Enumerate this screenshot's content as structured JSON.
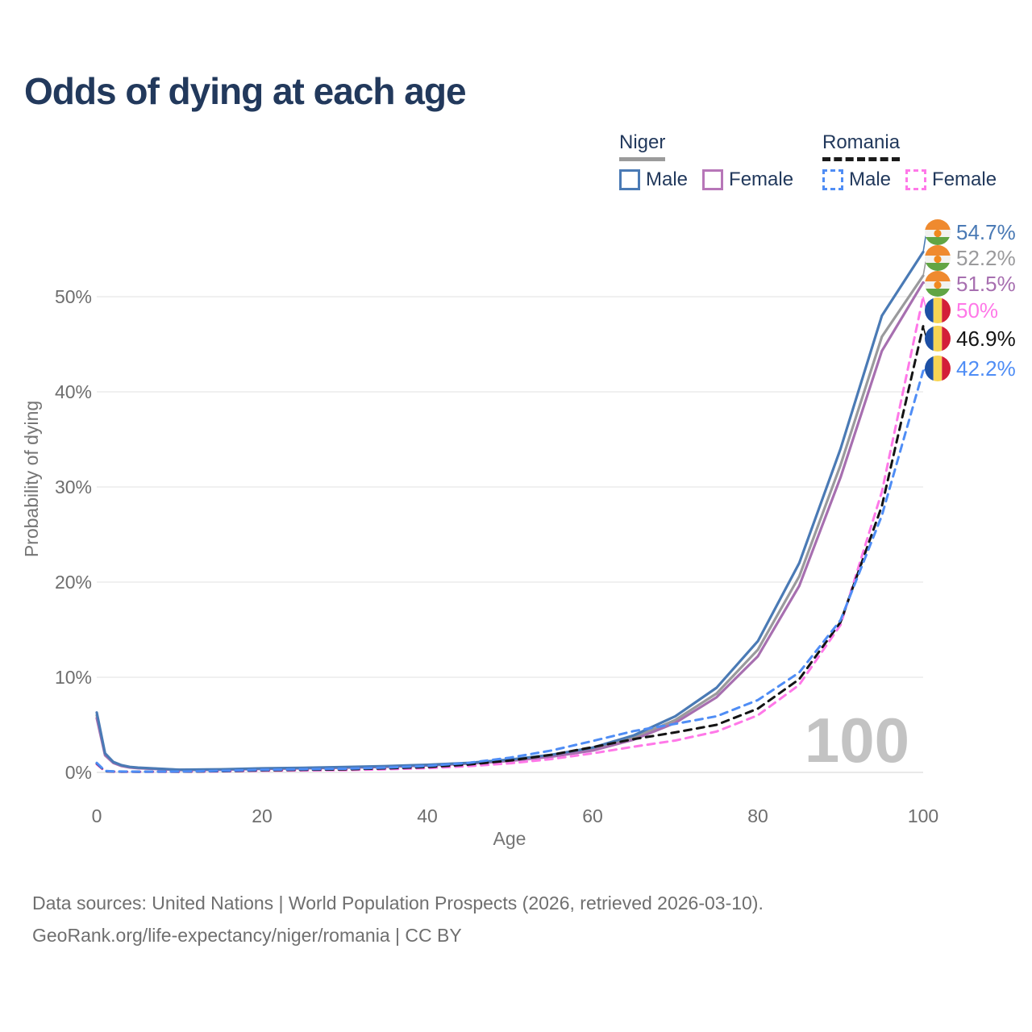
{
  "chart_data": {
    "type": "line",
    "title": "Odds of dying at each age",
    "xlabel": "Age",
    "ylabel": "Probability of dying",
    "xlim": [
      0,
      100
    ],
    "ylim": [
      0,
      57
    ],
    "grid": "horizontal",
    "watermark": "100",
    "xticks": [
      0,
      20,
      40,
      60,
      80,
      100
    ],
    "yticks": [
      {
        "value": 0,
        "label": "0%"
      },
      {
        "value": 10,
        "label": "10%"
      },
      {
        "value": 20,
        "label": "20%"
      },
      {
        "value": 30,
        "label": "30%"
      },
      {
        "value": 40,
        "label": "40%"
      },
      {
        "value": 50,
        "label": "50%"
      }
    ],
    "series": [
      {
        "name": "Niger Male",
        "country": "Niger",
        "sex": "Male",
        "color": "#4a7ab5",
        "line_style": "solid",
        "flag": "niger",
        "end_value": 54.7,
        "end_label": "54.7%",
        "points": [
          [
            0,
            6.3
          ],
          [
            1,
            2.0
          ],
          [
            2,
            1.1
          ],
          [
            3,
            0.75
          ],
          [
            4,
            0.58
          ],
          [
            5,
            0.5
          ],
          [
            10,
            0.28
          ],
          [
            15,
            0.32
          ],
          [
            20,
            0.42
          ],
          [
            25,
            0.48
          ],
          [
            30,
            0.56
          ],
          [
            35,
            0.66
          ],
          [
            40,
            0.8
          ],
          [
            45,
            1.0
          ],
          [
            50,
            1.35
          ],
          [
            55,
            1.85
          ],
          [
            60,
            2.6
          ],
          [
            65,
            3.9
          ],
          [
            70,
            5.9
          ],
          [
            75,
            8.9
          ],
          [
            80,
            13.8
          ],
          [
            85,
            22.0
          ],
          [
            90,
            34.0
          ],
          [
            95,
            48.0
          ],
          [
            100,
            54.7
          ]
        ]
      },
      {
        "name": "Niger (both sexes)",
        "country": "Niger",
        "sex": "Both",
        "color": "#9a9a9c",
        "line_style": "solid",
        "flag": "niger",
        "end_value": 52.2,
        "end_label": "52.2%",
        "points": [
          [
            0,
            6.0
          ],
          [
            1,
            1.9
          ],
          [
            2,
            1.05
          ],
          [
            3,
            0.7
          ],
          [
            4,
            0.55
          ],
          [
            5,
            0.47
          ],
          [
            10,
            0.26
          ],
          [
            15,
            0.3
          ],
          [
            20,
            0.4
          ],
          [
            25,
            0.45
          ],
          [
            30,
            0.52
          ],
          [
            35,
            0.62
          ],
          [
            40,
            0.77
          ],
          [
            45,
            0.97
          ],
          [
            50,
            1.28
          ],
          [
            55,
            1.75
          ],
          [
            60,
            2.45
          ],
          [
            65,
            3.65
          ],
          [
            70,
            5.5
          ],
          [
            75,
            8.3
          ],
          [
            80,
            12.9
          ],
          [
            85,
            20.6
          ],
          [
            90,
            32.3
          ],
          [
            95,
            45.8
          ],
          [
            100,
            52.2
          ]
        ]
      },
      {
        "name": "Niger Female",
        "country": "Niger",
        "sex": "Female",
        "color": "#a76fb0",
        "line_style": "solid",
        "flag": "niger",
        "end_value": 51.5,
        "end_label": "51.5%",
        "points": [
          [
            0,
            5.7
          ],
          [
            1,
            1.8
          ],
          [
            2,
            1.0
          ],
          [
            3,
            0.67
          ],
          [
            4,
            0.52
          ],
          [
            5,
            0.44
          ],
          [
            10,
            0.25
          ],
          [
            15,
            0.28
          ],
          [
            20,
            0.37
          ],
          [
            25,
            0.42
          ],
          [
            30,
            0.49
          ],
          [
            35,
            0.58
          ],
          [
            40,
            0.73
          ],
          [
            45,
            0.92
          ],
          [
            50,
            1.2
          ],
          [
            55,
            1.65
          ],
          [
            60,
            2.3
          ],
          [
            65,
            3.45
          ],
          [
            70,
            5.2
          ],
          [
            75,
            7.9
          ],
          [
            80,
            12.2
          ],
          [
            85,
            19.6
          ],
          [
            90,
            31.0
          ],
          [
            95,
            44.3
          ],
          [
            100,
            51.5
          ]
        ]
      },
      {
        "name": "Romania Female",
        "country": "Romania",
        "sex": "Female",
        "color": "#ff78e8",
        "line_style": "dashed",
        "flag": "romania",
        "end_value": 50.0,
        "end_label": "50%",
        "points": [
          [
            0,
            0.85
          ],
          [
            1,
            0.12
          ],
          [
            2,
            0.08
          ],
          [
            3,
            0.07
          ],
          [
            4,
            0.065
          ],
          [
            5,
            0.06
          ],
          [
            10,
            0.07
          ],
          [
            15,
            0.1
          ],
          [
            20,
            0.17
          ],
          [
            25,
            0.2
          ],
          [
            30,
            0.24
          ],
          [
            35,
            0.33
          ],
          [
            40,
            0.45
          ],
          [
            45,
            0.65
          ],
          [
            50,
            0.95
          ],
          [
            55,
            1.4
          ],
          [
            60,
            2.0
          ],
          [
            65,
            2.7
          ],
          [
            70,
            3.35
          ],
          [
            75,
            4.3
          ],
          [
            80,
            6.0
          ],
          [
            85,
            9.2
          ],
          [
            90,
            15.5
          ],
          [
            95,
            29.5
          ],
          [
            100,
            50.0
          ]
        ]
      },
      {
        "name": "Romania (both sexes)",
        "country": "Romania",
        "sex": "Both",
        "color": "#141414",
        "line_style": "dashed",
        "flag": "romania",
        "end_value": 46.9,
        "end_label": "46.9%",
        "points": [
          [
            0,
            0.95
          ],
          [
            1,
            0.13
          ],
          [
            2,
            0.09
          ],
          [
            3,
            0.08
          ],
          [
            4,
            0.075
          ],
          [
            5,
            0.07
          ],
          [
            10,
            0.08
          ],
          [
            15,
            0.13
          ],
          [
            20,
            0.22
          ],
          [
            25,
            0.27
          ],
          [
            30,
            0.31
          ],
          [
            35,
            0.42
          ],
          [
            40,
            0.56
          ],
          [
            45,
            0.82
          ],
          [
            50,
            1.25
          ],
          [
            55,
            1.85
          ],
          [
            60,
            2.65
          ],
          [
            65,
            3.5
          ],
          [
            70,
            4.2
          ],
          [
            75,
            5.0
          ],
          [
            80,
            6.7
          ],
          [
            85,
            9.8
          ],
          [
            90,
            15.8
          ],
          [
            95,
            28.0
          ],
          [
            100,
            46.9
          ]
        ]
      },
      {
        "name": "Romania Male",
        "country": "Romania",
        "sex": "Male",
        "color": "#4f8df5",
        "line_style": "dashed",
        "flag": "romania",
        "end_value": 42.2,
        "end_label": "42.2%",
        "points": [
          [
            0,
            1.0
          ],
          [
            1,
            0.15
          ],
          [
            2,
            0.1
          ],
          [
            3,
            0.09
          ],
          [
            4,
            0.085
          ],
          [
            5,
            0.08
          ],
          [
            10,
            0.09
          ],
          [
            15,
            0.16
          ],
          [
            20,
            0.27
          ],
          [
            25,
            0.33
          ],
          [
            30,
            0.38
          ],
          [
            35,
            0.5
          ],
          [
            40,
            0.68
          ],
          [
            45,
            1.0
          ],
          [
            50,
            1.55
          ],
          [
            55,
            2.3
          ],
          [
            60,
            3.3
          ],
          [
            65,
            4.35
          ],
          [
            70,
            5.1
          ],
          [
            75,
            5.9
          ],
          [
            80,
            7.6
          ],
          [
            85,
            10.5
          ],
          [
            90,
            16.0
          ],
          [
            95,
            27.0
          ],
          [
            100,
            42.2
          ]
        ]
      }
    ]
  },
  "legend": {
    "groups": [
      {
        "label": "Niger",
        "underline_style": "solid",
        "underline_color": "#9b9b9b",
        "items": [
          {
            "label": "Male",
            "color": "#4a7ab5",
            "line_style": "solid"
          },
          {
            "label": "Female",
            "color": "#b776b8",
            "line_style": "solid"
          }
        ]
      },
      {
        "label": "Romania",
        "underline_style": "dashed",
        "underline_color": "#1a1a1a",
        "items": [
          {
            "label": "Male",
            "color": "#4f8df5",
            "line_style": "dashed"
          },
          {
            "label": "Female",
            "color": "#ff78e8",
            "line_style": "dashed"
          }
        ]
      }
    ]
  },
  "flags": {
    "niger": {
      "top": "#ef8a2f",
      "middle": "#f2f2f0",
      "bottom": "#61a544",
      "dot": "#f0891f"
    },
    "romania": {
      "left": "#1d50a5",
      "middle": "#f7d454",
      "right": "#d31f38"
    }
  },
  "footer": {
    "line1": "Data sources: United Nations | World Population Prospects (2026, retrieved 2026-03-10).",
    "line2": "GeoRank.org/life-expectancy/niger/romania | CC BY"
  }
}
